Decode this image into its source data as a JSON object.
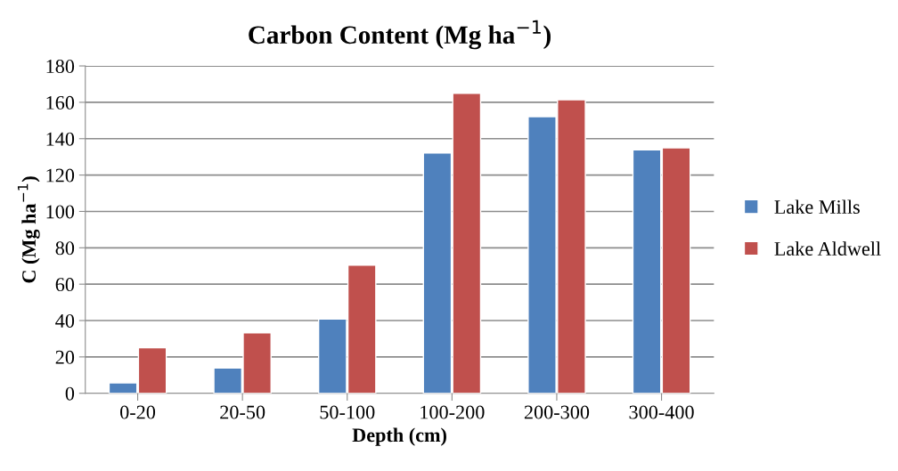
{
  "chart_data": {
    "type": "bar",
    "title": "Carbon Content (Mg ha$^{−1}$)",
    "xlabel": "Depth (cm)",
    "ylabel": "C (Mg ha$^{−1}$)",
    "categories": [
      "0-20",
      "20-50",
      "50-100",
      "100-200",
      "200-300",
      "300-400"
    ],
    "series": [
      {
        "name": "Lake Mills",
        "color": "#4f81bd",
        "values": [
          5.7,
          13.9,
          40.8,
          132.2,
          152.1,
          133.8
        ]
      },
      {
        "name": "Lake Aldwell",
        "color": "#c0504d",
        "values": [
          25,
          33.2,
          70.4,
          164.9,
          161.4,
          135
        ]
      }
    ],
    "ylim": [
      0,
      180
    ],
    "yticks": [
      0,
      20,
      40,
      60,
      80,
      100,
      120,
      140,
      160,
      180
    ],
    "grid": "y",
    "legend": "right"
  }
}
